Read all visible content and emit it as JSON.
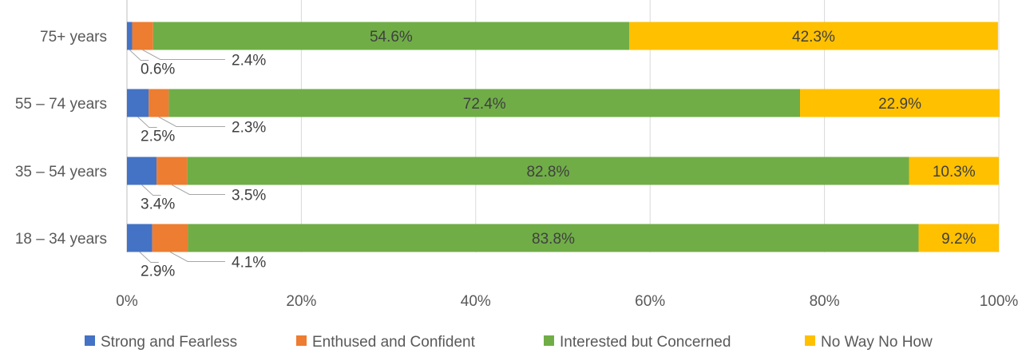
{
  "chart_data": {
    "type": "bar",
    "orientation": "horizontal",
    "stacked": "percent",
    "categories": [
      "75+ years",
      "55 – 74 years",
      "35 – 54 years",
      "18 – 34 years"
    ],
    "series": [
      {
        "name": "Strong and Fearless",
        "color": "#4472C4",
        "values": [
          0.6,
          2.5,
          3.4,
          2.9
        ],
        "labels": [
          "0.6%",
          "2.5%",
          "3.4%",
          "2.9%"
        ]
      },
      {
        "name": "Enthused and Confident",
        "color": "#ED7D31",
        "values": [
          2.4,
          2.3,
          3.5,
          4.1
        ],
        "labels": [
          "2.4%",
          "2.3%",
          "3.5%",
          "4.1%"
        ]
      },
      {
        "name": "Interested but Concerned",
        "color": "#70AD47",
        "values": [
          54.6,
          72.4,
          82.8,
          83.8
        ],
        "labels": [
          "54.6%",
          "72.4%",
          "82.8%",
          "83.8%"
        ]
      },
      {
        "name": "No Way No How",
        "color": "#FFC000",
        "values": [
          42.3,
          22.9,
          10.3,
          9.2
        ],
        "labels": [
          "42.3%",
          "22.9%",
          "10.3%",
          "9.2%"
        ]
      }
    ],
    "xlim": [
      0,
      100
    ],
    "xticks": [
      0,
      20,
      40,
      60,
      80,
      100
    ],
    "xtick_labels": [
      "0%",
      "20%",
      "40%",
      "60%",
      "80%",
      "100%"
    ],
    "grid": true,
    "legend": "bottom",
    "title": "",
    "xlabel": "",
    "ylabel": ""
  }
}
